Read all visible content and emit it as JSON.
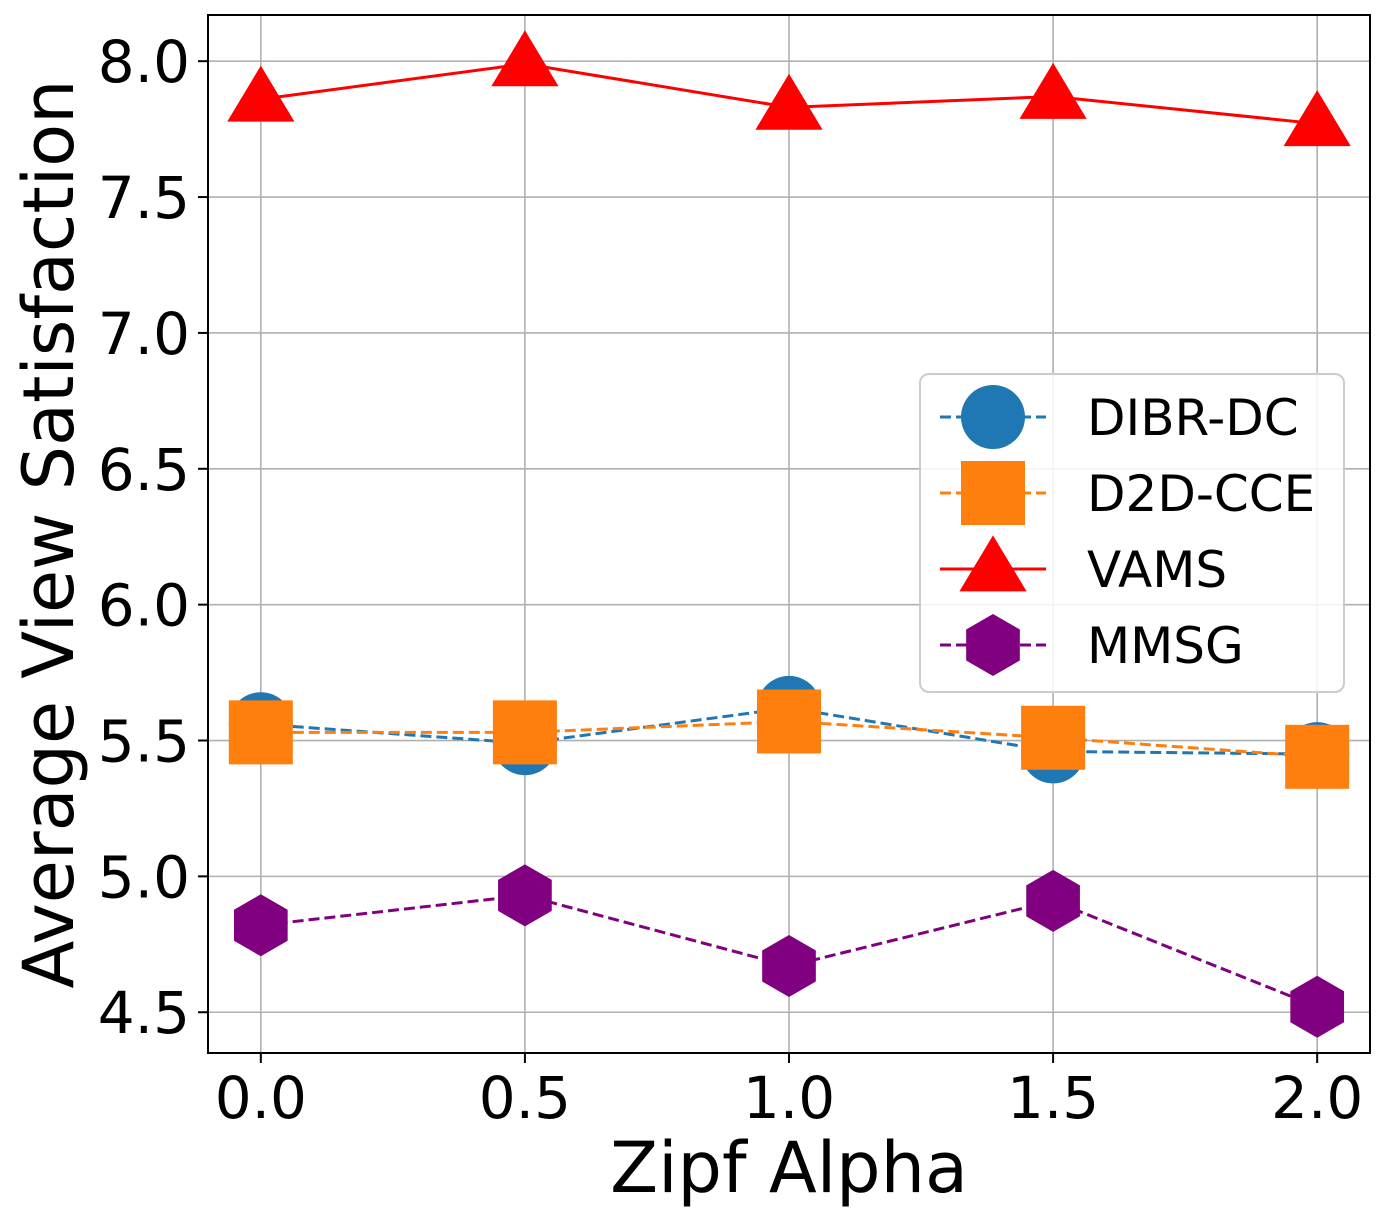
{
  "chart_data": {
    "type": "line",
    "x": [
      0.0,
      0.5,
      1.0,
      1.5,
      2.0
    ],
    "x_tick_labels": [
      "0.0",
      "0.5",
      "1.0",
      "1.5",
      "2.0"
    ],
    "y_ticks": [
      4.5,
      5.0,
      5.5,
      6.0,
      6.5,
      7.0,
      7.5,
      8.0
    ],
    "y_tick_labels": [
      "4.5",
      "5.0",
      "5.5",
      "6.0",
      "6.5",
      "7.0",
      "7.5",
      "8.0"
    ],
    "xlabel": "Zipf Alpha",
    "ylabel": "Average View Satisfaction",
    "xlim": [
      -0.1,
      2.1
    ],
    "ylim": [
      4.35,
      8.17
    ],
    "grid": true,
    "legend_position": "center-right",
    "series": [
      {
        "name": "DIBR-DC",
        "values": [
          5.56,
          5.49,
          5.62,
          5.46,
          5.45
        ],
        "color": "#1f77b4",
        "marker": "circle",
        "linestyle": "dashed"
      },
      {
        "name": "D2D-CCE",
        "values": [
          5.53,
          5.53,
          5.57,
          5.51,
          5.44
        ],
        "color": "#ff7f0e",
        "marker": "square",
        "linestyle": "dashed"
      },
      {
        "name": "VAMS",
        "values": [
          7.86,
          7.99,
          7.83,
          7.87,
          7.77
        ],
        "color": "#ff0000",
        "marker": "triangle",
        "linestyle": "solid"
      },
      {
        "name": "MMSG",
        "values": [
          4.82,
          4.93,
          4.67,
          4.91,
          4.52
        ],
        "color": "#800080",
        "marker": "hexagon",
        "linestyle": "dashed"
      }
    ]
  }
}
